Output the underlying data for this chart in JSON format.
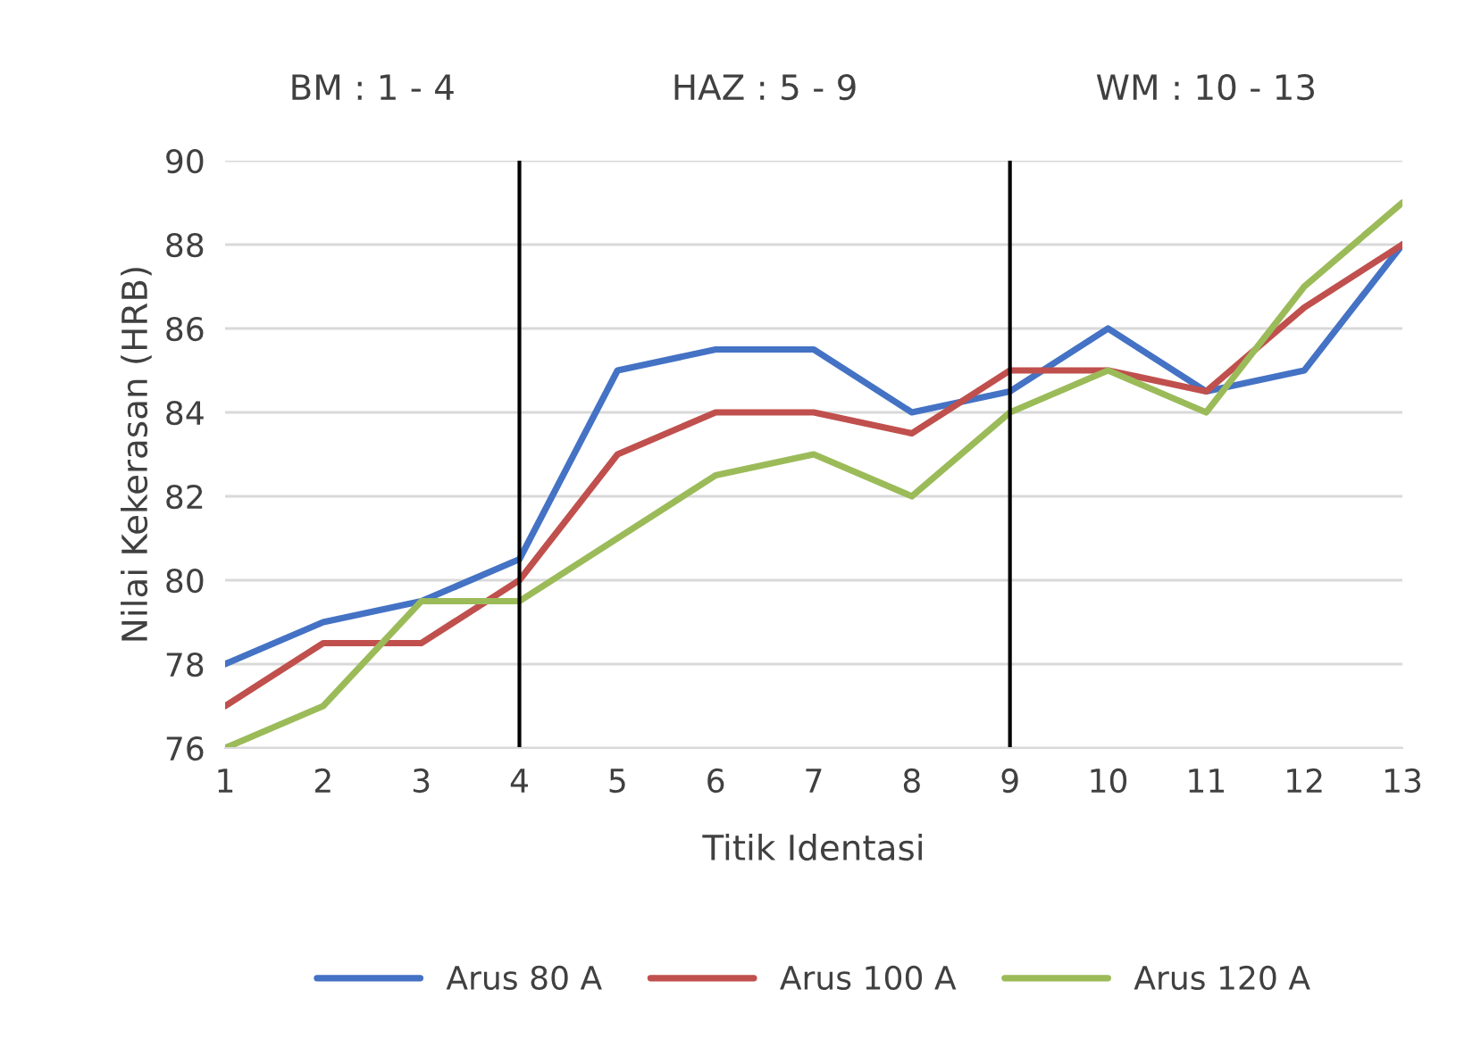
{
  "chart_data": {
    "type": "line",
    "xlabel": "Titik Identasi",
    "ylabel": "Nilai Kekerasan (HRB)",
    "x": [
      1,
      2,
      3,
      4,
      5,
      6,
      7,
      8,
      9,
      10,
      11,
      12,
      13
    ],
    "series": [
      {
        "name": "Arus 80 A",
        "color": "#4472c4",
        "values": [
          78,
          79,
          79.5,
          80.5,
          85,
          85.5,
          85.5,
          84,
          84.5,
          86,
          84.5,
          85,
          88
        ]
      },
      {
        "name": "Arus 100 A",
        "color": "#c0504d",
        "values": [
          77,
          78.5,
          78.5,
          80,
          83,
          84,
          84,
          83.5,
          85,
          85,
          84.5,
          86.5,
          88
        ]
      },
      {
        "name": "Arus 120 A",
        "color": "#9bbb59",
        "values": [
          76,
          77,
          79.5,
          79.5,
          81,
          82.5,
          83,
          82,
          84,
          85,
          84,
          87,
          89
        ]
      }
    ],
    "xlim": [
      1,
      13
    ],
    "xticks": [
      1,
      2,
      3,
      4,
      5,
      6,
      7,
      8,
      9,
      10,
      11,
      12,
      13
    ],
    "ylim": [
      76,
      90
    ],
    "yticks": [
      76,
      78,
      80,
      82,
      84,
      86,
      88,
      90
    ],
    "ref_lines": [
      {
        "axis": "x",
        "value": 4,
        "color": "#000000"
      },
      {
        "axis": "x",
        "value": 9,
        "color": "#000000"
      }
    ],
    "annotations": [
      "BM : 1 - 4",
      "HAZ : 5 - 9",
      "WM : 10 - 13"
    ],
    "grid": "y",
    "legend": "bottom",
    "marker": "none",
    "line_style": "solid"
  }
}
